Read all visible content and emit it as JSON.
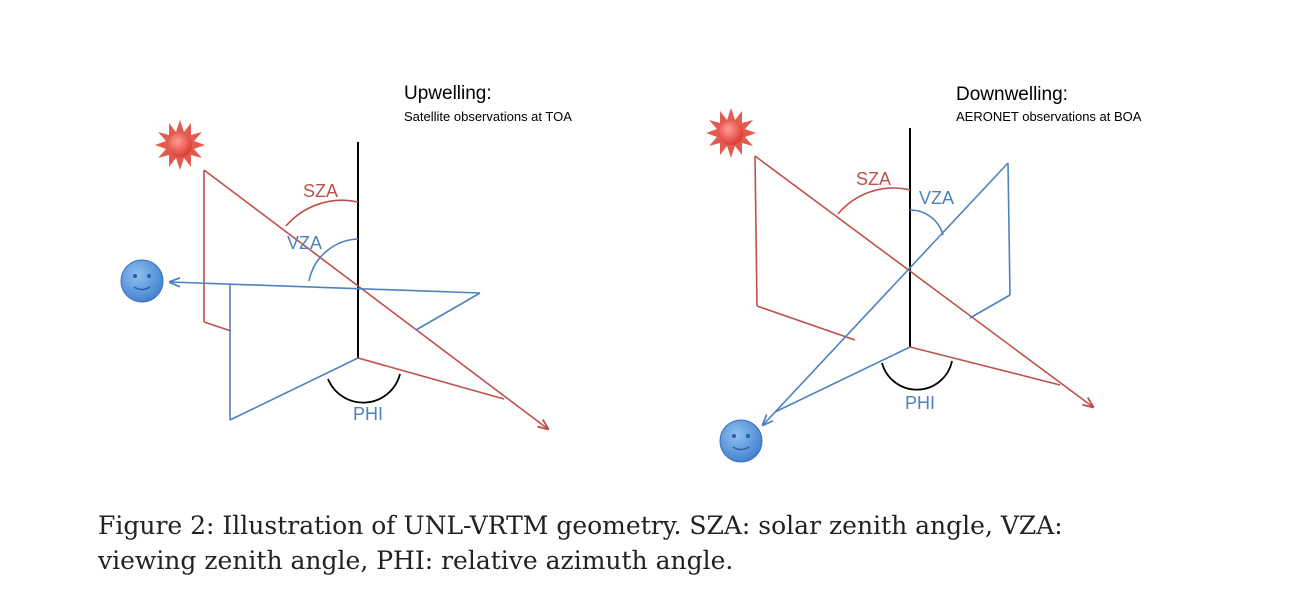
{
  "panels": {
    "upwelling": {
      "title": "Upwelling:",
      "subtitle": "Satellite observations at TOA",
      "sza_label": "SZA",
      "vza_label": "VZA",
      "phi_label": "PHI"
    },
    "downwelling": {
      "title": "Downwelling:",
      "subtitle": "AERONET observations at BOA",
      "sza_label": "SZA",
      "vza_label": "VZA",
      "phi_label": "PHI"
    }
  },
  "caption": {
    "line1": "Figure 2:  Illustration of UNL-VRTM geometry.  SZA: solar zenith angle, VZA:",
    "line2": "viewing zenith angle, PHI: relative azimuth angle."
  },
  "colors": {
    "sun_ray": "#c0504d",
    "view_ray": "#4f81bd",
    "zenith": "#000000",
    "sza_text": "#c0504d",
    "vza_text": "#4f81bd",
    "phi_text": "#4f81bd",
    "sun_fill": "#e8514a",
    "observer_fill": "#5b9bd5"
  },
  "icons": {
    "sun": "sun-icon",
    "observer": "observer-icon"
  }
}
